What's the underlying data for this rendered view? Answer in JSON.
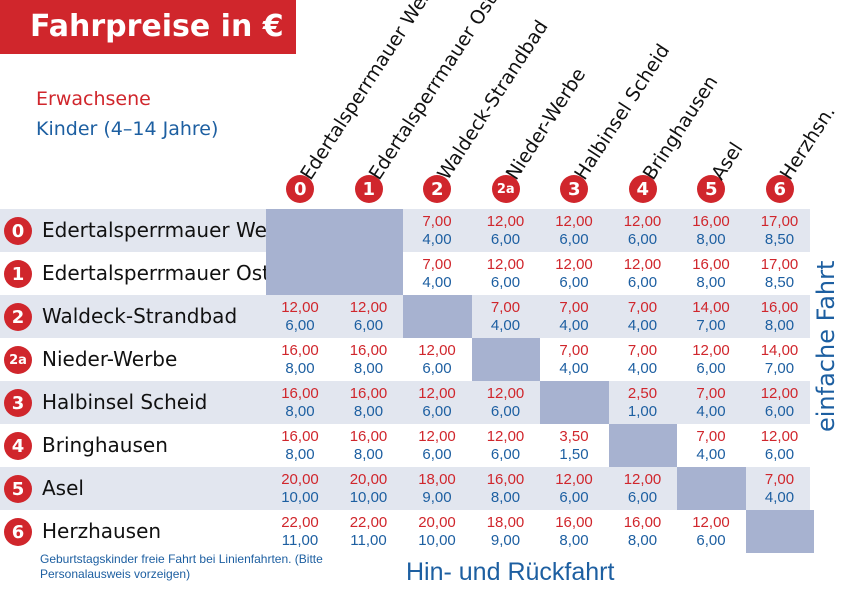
{
  "title": "Fahrpreise in €",
  "legend": {
    "adult": "Erwachsene",
    "child": "Kinder (4–14 Jahre)"
  },
  "side_label": "einfache Fahrt",
  "bottom_label": "Hin- und Rückfahrt",
  "footnote": "Geburtstagskinder freie Fahrt bei Linienfahrten. (Bitte Personalausweis vorzeigen)",
  "colors": {
    "red": "#d0262c",
    "blue": "#1d5fa1",
    "shade": "#e2e6ef",
    "block": "#a7b2d0"
  },
  "stations": [
    {
      "code": "0",
      "name": "Edertalsperrmauer West"
    },
    {
      "code": "1",
      "name": "Edertalsperrmauer Ost"
    },
    {
      "code": "2",
      "name": "Waldeck-Strandbad"
    },
    {
      "code": "2a",
      "name": "Nieder-Werbe"
    },
    {
      "code": "3",
      "name": "Halbinsel Scheid"
    },
    {
      "code": "4",
      "name": "Bringhausen"
    },
    {
      "code": "5",
      "name": "Asel"
    },
    {
      "code": "6",
      "name": "Herzhausen"
    }
  ],
  "column_headers": [
    "Edertalsperrmauer West",
    "Edertalsperrmauer Ost",
    "Waldeck-Strandbad",
    "Nieder-Werbe",
    "Halbinsel Scheid",
    "Bringhausen",
    "Asel",
    "Herzhsn."
  ],
  "fares": [
    [
      null,
      null,
      [
        "7,00",
        "4,00"
      ],
      [
        "12,00",
        "6,00"
      ],
      [
        "12,00",
        "6,00"
      ],
      [
        "12,00",
        "6,00"
      ],
      [
        "16,00",
        "8,00"
      ],
      [
        "17,00",
        "8,50"
      ]
    ],
    [
      null,
      null,
      [
        "7,00",
        "4,00"
      ],
      [
        "12,00",
        "6,00"
      ],
      [
        "12,00",
        "6,00"
      ],
      [
        "12,00",
        "6,00"
      ],
      [
        "16,00",
        "8,00"
      ],
      [
        "17,00",
        "8,50"
      ]
    ],
    [
      [
        "12,00",
        "6,00"
      ],
      [
        "12,00",
        "6,00"
      ],
      null,
      [
        "7,00",
        "4,00"
      ],
      [
        "7,00",
        "4,00"
      ],
      [
        "7,00",
        "4,00"
      ],
      [
        "14,00",
        "7,00"
      ],
      [
        "16,00",
        "8,00"
      ]
    ],
    [
      [
        "16,00",
        "8,00"
      ],
      [
        "16,00",
        "8,00"
      ],
      [
        "12,00",
        "6,00"
      ],
      null,
      [
        "7,00",
        "4,00"
      ],
      [
        "7,00",
        "4,00"
      ],
      [
        "12,00",
        "6,00"
      ],
      [
        "14,00",
        "7,00"
      ]
    ],
    [
      [
        "16,00",
        "8,00"
      ],
      [
        "16,00",
        "8,00"
      ],
      [
        "12,00",
        "6,00"
      ],
      [
        "12,00",
        "6,00"
      ],
      null,
      [
        "2,50",
        "1,00"
      ],
      [
        "7,00",
        "4,00"
      ],
      [
        "12,00",
        "6,00"
      ]
    ],
    [
      [
        "16,00",
        "8,00"
      ],
      [
        "16,00",
        "8,00"
      ],
      [
        "12,00",
        "6,00"
      ],
      [
        "12,00",
        "6,00"
      ],
      [
        "3,50",
        "1,50"
      ],
      null,
      [
        "7,00",
        "4,00"
      ],
      [
        "12,00",
        "6,00"
      ]
    ],
    [
      [
        "20,00",
        "10,00"
      ],
      [
        "20,00",
        "10,00"
      ],
      [
        "18,00",
        "9,00"
      ],
      [
        "16,00",
        "8,00"
      ],
      [
        "12,00",
        "6,00"
      ],
      [
        "12,00",
        "6,00"
      ],
      null,
      [
        "7,00",
        "4,00"
      ]
    ],
    [
      [
        "22,00",
        "11,00"
      ],
      [
        "22,00",
        "11,00"
      ],
      [
        "20,00",
        "10,00"
      ],
      [
        "18,00",
        "9,00"
      ],
      [
        "16,00",
        "8,00"
      ],
      [
        "16,00",
        "8,00"
      ],
      [
        "12,00",
        "6,00"
      ],
      null
    ]
  ]
}
